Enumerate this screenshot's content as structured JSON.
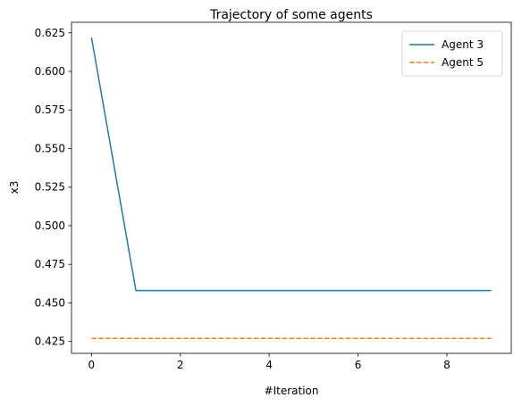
{
  "chart_data": {
    "type": "line",
    "title": "Trajectory of some agents",
    "xlabel": "#Iteration",
    "ylabel": "x3",
    "xlim": [
      -0.45,
      9.45
    ],
    "ylim": [
      0.4173,
      0.6318
    ],
    "xticks": [
      0,
      2,
      4,
      6,
      8
    ],
    "yticks": [
      0.425,
      0.45,
      0.475,
      0.5,
      0.525,
      0.55,
      0.575,
      0.6,
      0.625
    ],
    "ytick_labels": [
      "0.425",
      "0.450",
      "0.475",
      "0.500",
      "0.525",
      "0.550",
      "0.575",
      "0.600",
      "0.625"
    ],
    "grid": false,
    "legend_position": "top-right",
    "series": [
      {
        "name": "Agent 3",
        "color": "#1f77b4",
        "style": "solid",
        "x": [
          0,
          1,
          2,
          3,
          4,
          5,
          6,
          7,
          8,
          9
        ],
        "values": [
          0.622,
          0.458,
          0.458,
          0.458,
          0.458,
          0.458,
          0.458,
          0.458,
          0.458,
          0.458
        ]
      },
      {
        "name": "Agent 5",
        "color": "#ff7f0e",
        "style": "dashed",
        "x": [
          0,
          1,
          2,
          3,
          4,
          5,
          6,
          7,
          8,
          9
        ],
        "values": [
          0.427,
          0.427,
          0.427,
          0.427,
          0.427,
          0.427,
          0.427,
          0.427,
          0.427,
          0.427
        ]
      }
    ]
  }
}
